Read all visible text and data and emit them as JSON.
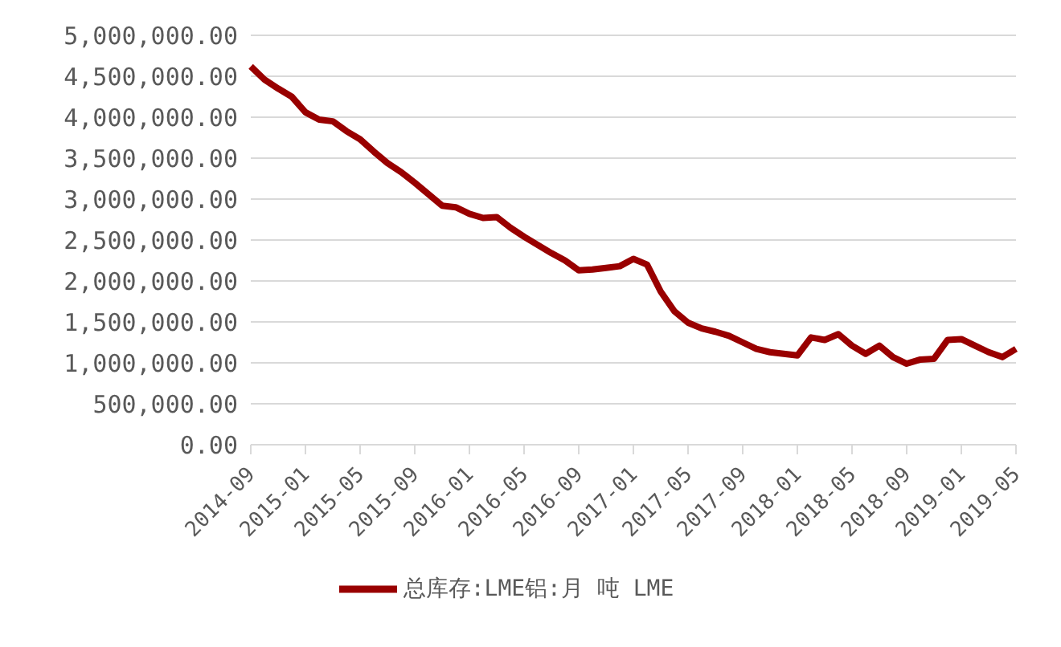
{
  "chart_data": {
    "type": "line",
    "categories": [
      "2014-09",
      null,
      null,
      null,
      "2015-01",
      null,
      null,
      null,
      "2015-05",
      null,
      null,
      null,
      "2015-09",
      null,
      null,
      null,
      "2016-01",
      null,
      null,
      null,
      "2016-05",
      null,
      null,
      null,
      "2016-09",
      null,
      null,
      null,
      "2017-01",
      null,
      null,
      null,
      "2017-05",
      null,
      null,
      null,
      "2017-09",
      null,
      null,
      null,
      "2018-01",
      null,
      null,
      null,
      "2018-05",
      null,
      null,
      null,
      "2018-09",
      null,
      null,
      null,
      "2019-01",
      null,
      null,
      null,
      "2019-05"
    ],
    "series": [
      {
        "name": "总库存:LME铝:月 吨 LME",
        "color": "#990000",
        "values": [
          4620000,
          4460000,
          4350000,
          4250000,
          4060000,
          3970000,
          3950000,
          3830000,
          3730000,
          3580000,
          3440000,
          3330000,
          3200000,
          3060000,
          2920000,
          2900000,
          2820000,
          2770000,
          2780000,
          2650000,
          2540000,
          2440000,
          2340000,
          2250000,
          2130000,
          2140000,
          2160000,
          2180000,
          2270000,
          2200000,
          1870000,
          1630000,
          1490000,
          1420000,
          1380000,
          1330000,
          1250000,
          1170000,
          1130000,
          1110000,
          1090000,
          1310000,
          1280000,
          1350000,
          1210000,
          1110000,
          1210000,
          1070000,
          990000,
          1040000,
          1050000,
          1280000,
          1290000,
          1210000,
          1130000,
          1070000,
          1170000
        ]
      }
    ],
    "ylim": [
      0,
      5000000
    ],
    "yticks": [
      {
        "value": 0,
        "label": "0.00"
      },
      {
        "value": 500000,
        "label": "500,000.00"
      },
      {
        "value": 1000000,
        "label": "1,000,000.00"
      },
      {
        "value": 1500000,
        "label": "1,500,000.00"
      },
      {
        "value": 2000000,
        "label": "2,000,000.00"
      },
      {
        "value": 2500000,
        "label": "2,500,000.00"
      },
      {
        "value": 3000000,
        "label": "3,000,000.00"
      },
      {
        "value": 3500000,
        "label": "3,500,000.00"
      },
      {
        "value": 4000000,
        "label": "4,000,000.00"
      },
      {
        "value": 4500000,
        "label": "4,500,000.00"
      },
      {
        "value": 5000000,
        "label": "5,000,000.00"
      }
    ],
    "grid": "y",
    "legend": "bottom",
    "marker": "none",
    "line_style": "solid"
  }
}
